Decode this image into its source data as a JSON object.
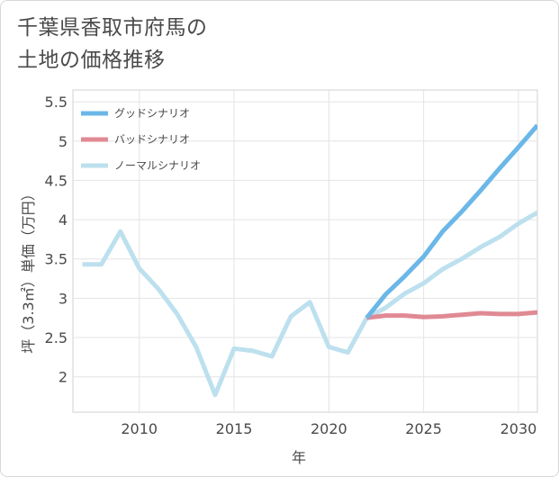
{
  "title_lines": [
    "千葉県香取市府馬の",
    "土地の価格推移"
  ],
  "chart_data": {
    "type": "line",
    "xlabel": "年",
    "ylabel": "坪（3.3㎡）単価（万円）",
    "xlim": [
      2006.5,
      2031
    ],
    "ylim": [
      1.55,
      5.65
    ],
    "x_ticks": [
      2010,
      2015,
      2020,
      2025,
      2030
    ],
    "y_ticks": [
      2,
      2.5,
      3,
      3.5,
      4,
      4.5,
      5,
      5.5
    ],
    "grid": true,
    "legend_position": "top-left",
    "series": [
      {
        "name": "グッドシナリオ",
        "color": "#6bb7e8",
        "x": [
          2022,
          2023,
          2024,
          2025,
          2026,
          2027,
          2028,
          2029,
          2030,
          2031
        ],
        "y": [
          2.75,
          3.05,
          3.28,
          3.53,
          3.85,
          4.1,
          4.37,
          4.65,
          4.92,
          5.2
        ]
      },
      {
        "name": "バッドシナリオ",
        "color": "#e08a94",
        "x": [
          2022,
          2023,
          2024,
          2025,
          2026,
          2027,
          2028,
          2029,
          2030,
          2031
        ],
        "y": [
          2.75,
          2.78,
          2.78,
          2.76,
          2.77,
          2.79,
          2.81,
          2.8,
          2.8,
          2.82
        ]
      },
      {
        "name": "ノーマルシナリオ",
        "color": "#bde0ee",
        "x": [
          2007,
          2008,
          2009,
          2010,
          2011,
          2012,
          2013,
          2014,
          2015,
          2016,
          2017,
          2018,
          2019,
          2020,
          2021,
          2022,
          2023,
          2024,
          2025,
          2026,
          2027,
          2028,
          2029,
          2030,
          2031
        ],
        "y": [
          3.43,
          3.43,
          3.85,
          3.38,
          3.12,
          2.8,
          2.38,
          1.77,
          2.36,
          2.33,
          2.26,
          2.77,
          2.95,
          2.38,
          2.31,
          2.75,
          2.88,
          3.06,
          3.19,
          3.37,
          3.5,
          3.65,
          3.78,
          3.95,
          4.09
        ]
      }
    ]
  }
}
